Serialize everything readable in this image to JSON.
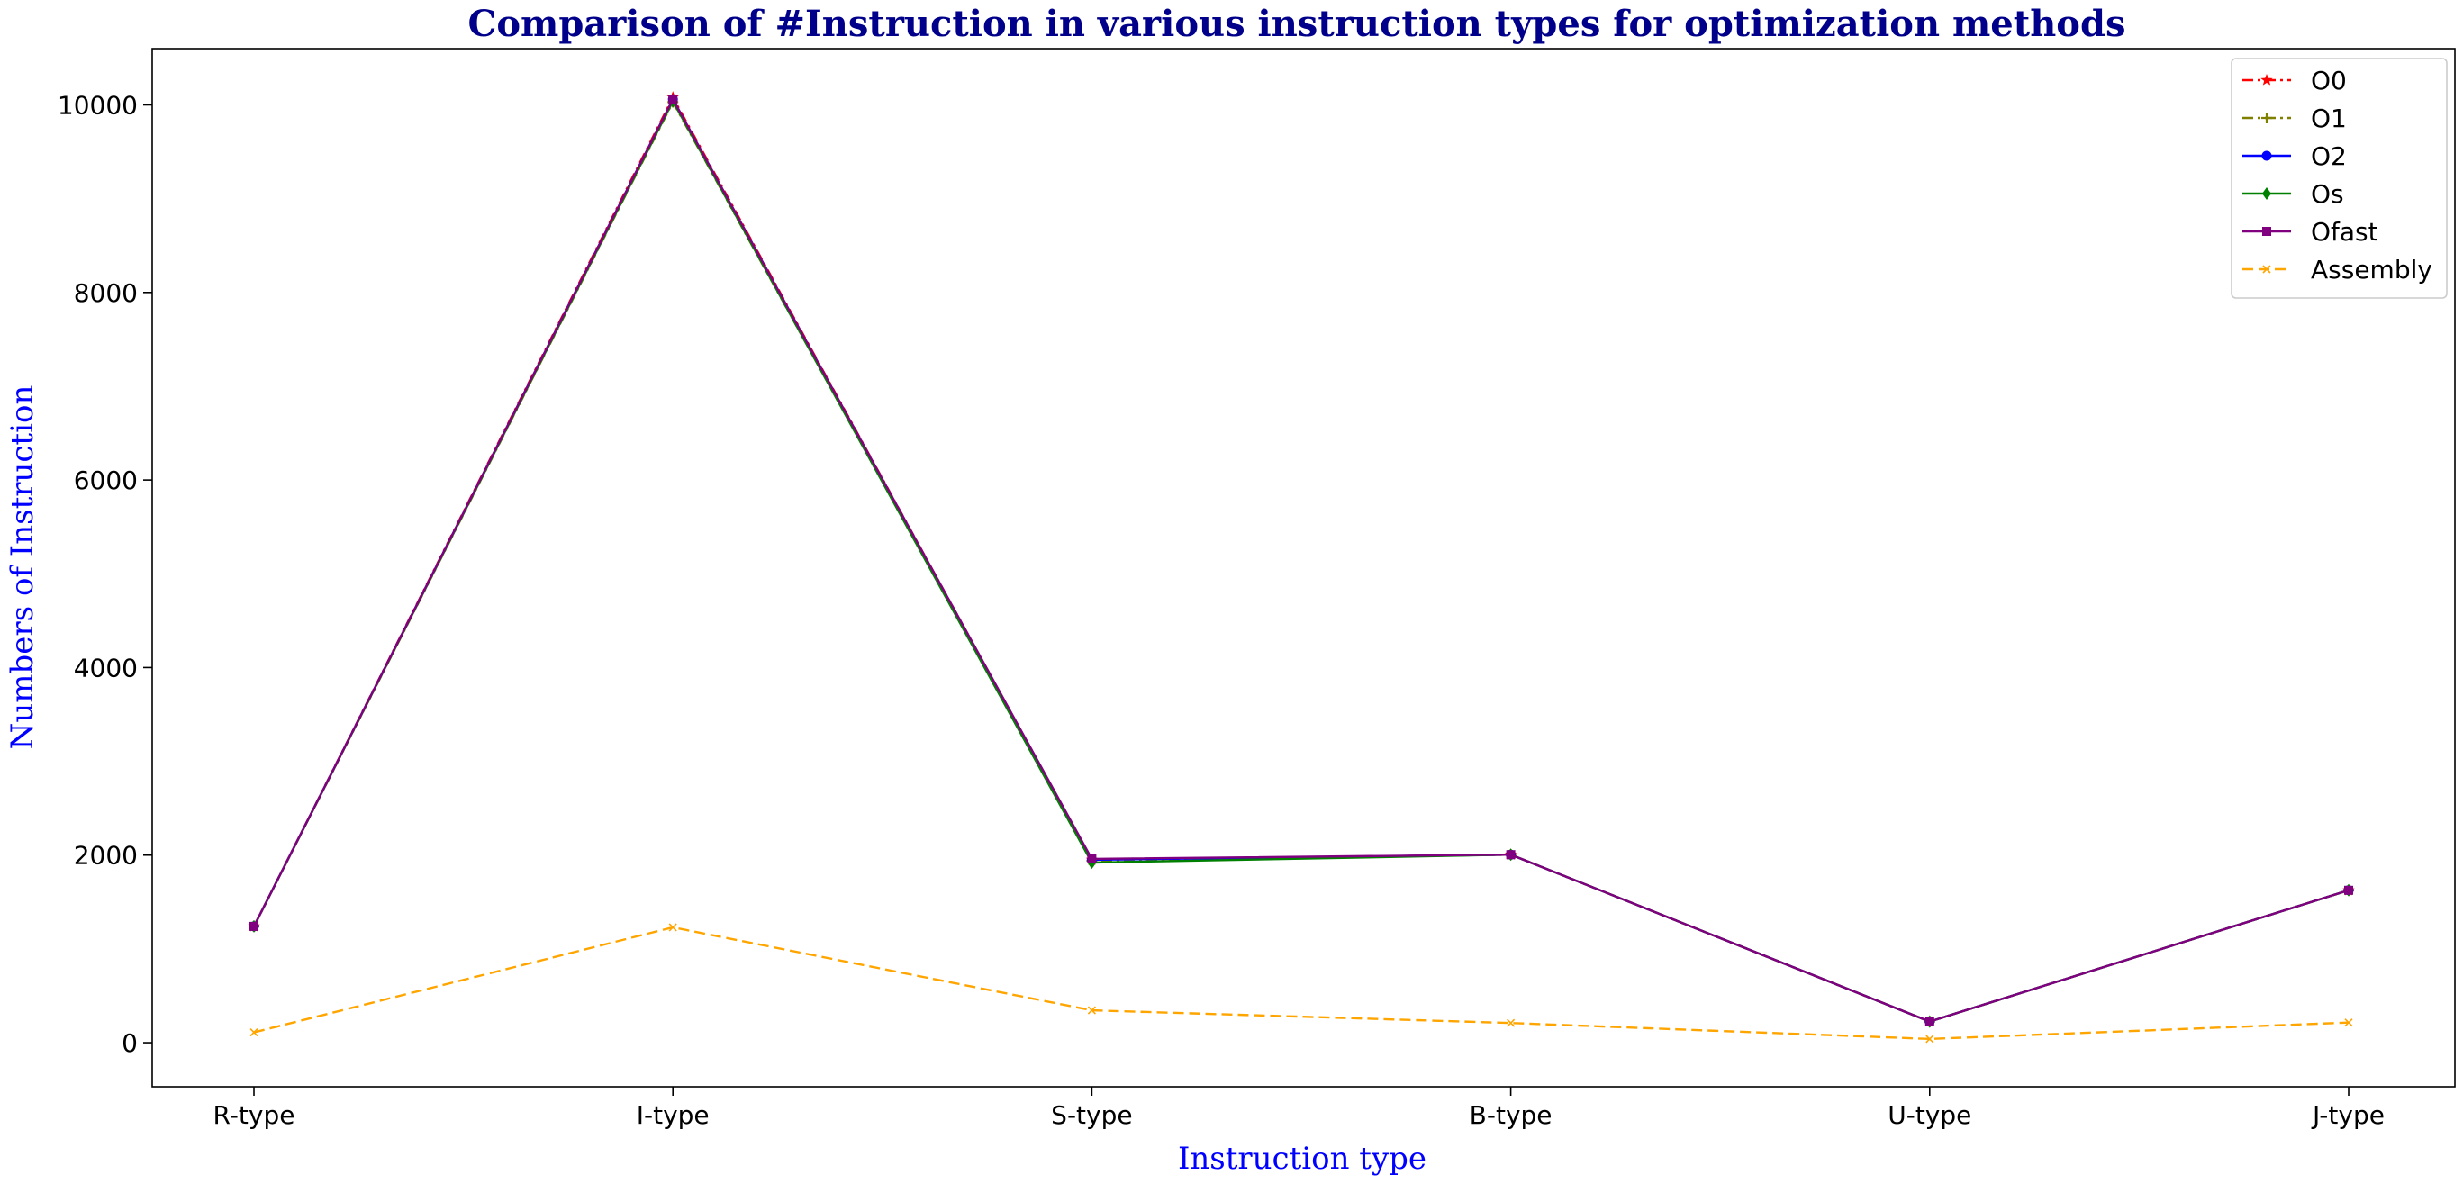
{
  "chart_data": {
    "type": "line",
    "title": "Comparison of #Instruction in various instruction types for optimization methods",
    "xlabel": "Instruction type",
    "ylabel": "Numbers of Instruction",
    "categories": [
      "R-type",
      "I-type",
      "S-type",
      "B-type",
      "U-type",
      "J-type"
    ],
    "ylim": [
      -470,
      10600
    ],
    "yticks": [
      0,
      2000,
      4000,
      6000,
      8000,
      10000
    ],
    "grid": false,
    "legend_position": "top-right",
    "series": [
      {
        "name": "O0",
        "color": "#ff0000",
        "dash": "dashdot",
        "marker": "star",
        "values": [
          1240,
          10080,
          1950,
          2005,
          225,
          1625
        ]
      },
      {
        "name": "O1",
        "color": "#808000",
        "dash": "dashdot",
        "marker": "plus",
        "values": [
          1240,
          10030,
          1940,
          2005,
          225,
          1625
        ]
      },
      {
        "name": "O2",
        "color": "#0000ff",
        "dash": "solid",
        "marker": "circle",
        "values": [
          1240,
          10060,
          1950,
          2005,
          225,
          1625
        ]
      },
      {
        "name": "Os",
        "color": "#008000",
        "dash": "solid",
        "marker": "diamond",
        "values": [
          1240,
          10040,
          1920,
          2005,
          225,
          1625
        ]
      },
      {
        "name": "Ofast",
        "color": "#800080",
        "dash": "solid",
        "marker": "square",
        "values": [
          1240,
          10060,
          1960,
          2005,
          225,
          1625
        ]
      },
      {
        "name": "Assembly",
        "color": "#ffa500",
        "dash": "dashed",
        "marker": "x",
        "values": [
          110,
          1230,
          345,
          210,
          40,
          215
        ]
      }
    ]
  }
}
